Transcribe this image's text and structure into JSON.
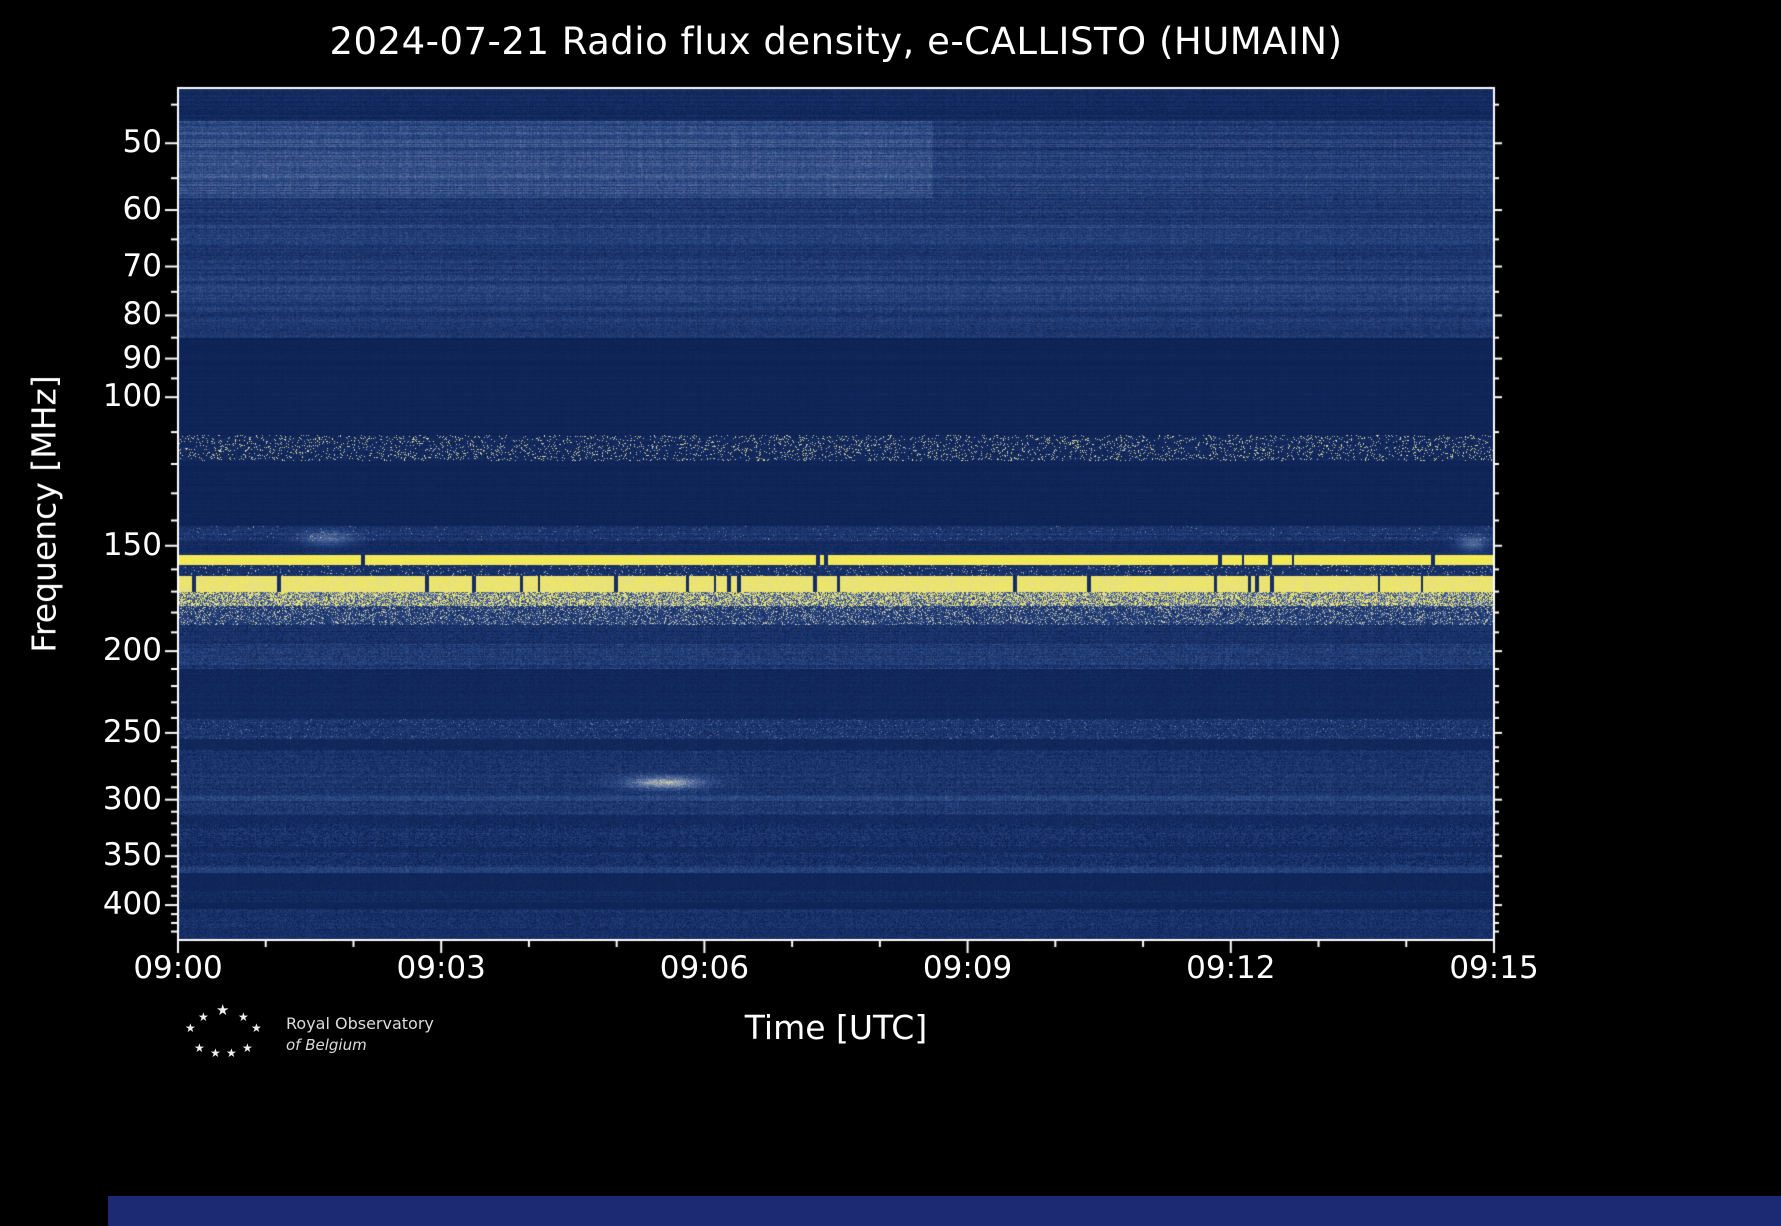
{
  "figure": {
    "background": "#000000",
    "footer_bar_color": "#1b2a72",
    "logo_line1": "Royal Observatory",
    "logo_line2": "of Belgium"
  },
  "chart_data": {
    "type": "heatmap",
    "title": "2024-07-21 Radio flux density, e-CALLISTO (HUMAIN)",
    "xlabel": "Time [UTC]",
    "ylabel": "Frequency [MHz]",
    "x_ticks": [
      "09:00",
      "09:03",
      "09:06",
      "09:09",
      "09:12",
      "09:15"
    ],
    "x_tick_minutes": [
      0,
      3,
      6,
      9,
      12,
      15
    ],
    "x_minor_minutes": [
      1,
      2,
      4,
      5,
      7,
      8,
      10,
      11,
      13,
      14
    ],
    "y_ticks": [
      "50",
      "60",
      "70",
      "80",
      "90",
      "100",
      "150",
      "200",
      "250",
      "300",
      "350",
      "400"
    ],
    "y_ticks_mhz": [
      50,
      60,
      70,
      80,
      90,
      100,
      150,
      200,
      250,
      300,
      350,
      400
    ],
    "y_minor_mhz": [
      45,
      55,
      65,
      75,
      85,
      95,
      110,
      120,
      130,
      140,
      160,
      170,
      180,
      190,
      210,
      220,
      230,
      240,
      260,
      270,
      280,
      290,
      310,
      320,
      330,
      340,
      360,
      370,
      380,
      390,
      410,
      420,
      430
    ],
    "y_scale": "log",
    "y_axis_inverted": true,
    "freq_range_mhz": [
      43,
      440
    ],
    "time_range_min": [
      0,
      15
    ],
    "grid": false,
    "legend": "none",
    "background_color": "#0a1d4d",
    "frame_color": "#ffffff",
    "colormap_stops": [
      [
        0.0,
        "#0a1d4d"
      ],
      [
        0.25,
        "#23407c"
      ],
      [
        0.45,
        "#4f6899"
      ],
      [
        0.65,
        "#9aa4b4"
      ],
      [
        0.8,
        "#ded8a8"
      ],
      [
        1.0,
        "#f8ef3c"
      ]
    ],
    "bands": [
      {
        "f0": 43,
        "f1": 47,
        "m": 0.1,
        "n": 0.05,
        "st": 0.04
      },
      {
        "f0": 47,
        "f1": 58,
        "m": 0.32,
        "n": 0.09,
        "st": 0.1,
        "tm": 8.6,
        "m2": 0.23
      },
      {
        "f0": 58,
        "f1": 62,
        "m": 0.19,
        "n": 0.09,
        "st": 0.07
      },
      {
        "f0": 62,
        "f1": 66,
        "m": 0.24,
        "n": 0.09,
        "st": 0.07
      },
      {
        "f0": 66,
        "f1": 72,
        "m": 0.2,
        "n": 0.09,
        "st": 0.07
      },
      {
        "f0": 72,
        "f1": 78,
        "m": 0.23,
        "n": 0.09,
        "st": 0.07
      },
      {
        "f0": 78,
        "f1": 85,
        "m": 0.2,
        "n": 0.09,
        "st": 0.07
      },
      {
        "f0": 85,
        "f1": 111,
        "m": 0.055,
        "n": 0.015,
        "st": 0.02
      },
      {
        "f0": 111,
        "f1": 119,
        "m": 0.09,
        "n": 0.05,
        "sp": 0.1,
        "sv": 0.78,
        "st": 0.02
      },
      {
        "f0": 119,
        "f1": 142,
        "m": 0.06,
        "n": 0.02,
        "st": 0.02
      },
      {
        "f0": 142,
        "f1": 148,
        "m": 0.17,
        "n": 0.1,
        "st": 0.06,
        "sp": 0.02,
        "sv": 0.5
      },
      {
        "f0": 148,
        "f1": 154,
        "m": 0.11,
        "n": 0.06,
        "st": 0.04
      },
      {
        "f0": 154,
        "f1": 158,
        "ln": true,
        "m": 0.95,
        "n": 0.04,
        "bp": 0.03
      },
      {
        "f0": 158,
        "f1": 163,
        "m": 0.14,
        "n": 0.08,
        "sp": 0.05,
        "sv": 0.7
      },
      {
        "f0": 163,
        "f1": 170,
        "ln": true,
        "m": 0.9,
        "n": 0.08,
        "bp": 0.07
      },
      {
        "f0": 170,
        "f1": 177,
        "m": 0.42,
        "n": 0.2,
        "sp": 0.45,
        "sv": 0.88
      },
      {
        "f0": 177,
        "f1": 186,
        "m": 0.22,
        "n": 0.12,
        "sp": 0.18,
        "sv": 0.72
      },
      {
        "f0": 186,
        "f1": 196,
        "m": 0.14,
        "n": 0.09,
        "st": 0.04
      },
      {
        "f0": 196,
        "f1": 210,
        "m": 0.21,
        "n": 0.12,
        "st": 0.05
      },
      {
        "f0": 210,
        "f1": 241,
        "m": 0.08,
        "n": 0.04,
        "st": 0.02
      },
      {
        "f0": 241,
        "f1": 254,
        "m": 0.17,
        "n": 0.11,
        "sp": 0.05,
        "sv": 0.45,
        "st": 0.04
      },
      {
        "f0": 254,
        "f1": 262,
        "m": 0.08,
        "n": 0.04
      },
      {
        "f0": 262,
        "f1": 297,
        "m": 0.17,
        "n": 0.11,
        "st": 0.04
      },
      {
        "f0": 297,
        "f1": 301,
        "m": 0.28,
        "n": 0.09
      },
      {
        "f0": 301,
        "f1": 313,
        "m": 0.19,
        "n": 0.12,
        "st": 0.04
      },
      {
        "f0": 313,
        "f1": 321,
        "m": 0.1,
        "n": 0.06
      },
      {
        "f0": 321,
        "f1": 341,
        "m": 0.16,
        "n": 0.11,
        "dp": 0.12,
        "st": 0.04
      },
      {
        "f0": 341,
        "f1": 347,
        "m": 0.1,
        "n": 0.06
      },
      {
        "f0": 347,
        "f1": 361,
        "m": 0.16,
        "n": 0.11,
        "dp": 0.1,
        "st": 0.04
      },
      {
        "f0": 361,
        "f1": 366,
        "m": 0.25,
        "n": 0.09
      },
      {
        "f0": 366,
        "f1": 384,
        "m": 0.07,
        "n": 0.03
      },
      {
        "f0": 384,
        "f1": 397,
        "m": 0.1,
        "n": 0.06,
        "st": 0.03
      },
      {
        "f0": 397,
        "f1": 404,
        "m": 0.06,
        "n": 0.03
      },
      {
        "f0": 404,
        "f1": 427,
        "m": 0.15,
        "n": 0.1,
        "dp": 0.05,
        "st": 0.03
      },
      {
        "f0": 427,
        "f1": 440,
        "m": 0.13,
        "n": 0.08,
        "st": 0.03
      }
    ],
    "features": [
      {
        "type": "bright-streak",
        "time_min": 5.55,
        "freq_mhz": 286,
        "dur_min": 0.9,
        "bw_mhz": 10,
        "intensity": 0.5
      },
      {
        "type": "bright-patch",
        "time_min": 1.7,
        "freq_mhz": 147,
        "dur_min": 0.6,
        "bw_mhz": 6,
        "intensity": 0.3
      },
      {
        "type": "bright-patch",
        "time_min": 14.75,
        "freq_mhz": 149,
        "dur_min": 0.35,
        "bw_mhz": 6,
        "intensity": 0.35
      }
    ]
  }
}
